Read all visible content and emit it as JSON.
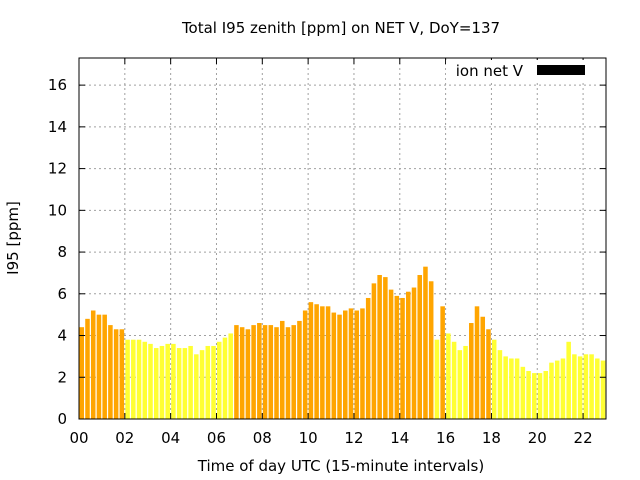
{
  "chart_data": {
    "type": "bar",
    "title": "Total I95 zenith [ppm] on NET V, DoY=137",
    "xlabel": "Time of day UTC (15-minute intervals)",
    "ylabel": "I95 [ppm]",
    "xlim": [
      0,
      23
    ],
    "ylim": [
      0,
      17.3
    ],
    "x_ticks": [
      0,
      2,
      4,
      6,
      8,
      10,
      12,
      14,
      16,
      18,
      20,
      22
    ],
    "x_tick_labels": [
      "00",
      "02",
      "04",
      "06",
      "08",
      "10",
      "12",
      "14",
      "16",
      "18",
      "20",
      "22"
    ],
    "y_ticks": [
      0,
      2,
      4,
      6,
      8,
      10,
      12,
      14,
      16
    ],
    "y_tick_labels": [
      "0",
      "2",
      "4",
      "6",
      "8",
      "10",
      "12",
      "14",
      "16"
    ],
    "grid": true,
    "legend": {
      "position": "top-right",
      "label": "ion net V",
      "color": "#000000"
    },
    "interval_hours": 0.25,
    "colors": {
      "orange": "#ffa500",
      "yellow": "#ffff33",
      "black": "#000000",
      "grid": "#a0a0a0"
    },
    "series": [
      {
        "name": "ion net V",
        "values": [
          4.4,
          4.8,
          5.2,
          5.0,
          5.0,
          4.5,
          4.3,
          4.3,
          3.8,
          3.8,
          3.8,
          3.7,
          3.6,
          3.4,
          3.5,
          3.6,
          3.6,
          3.4,
          3.4,
          3.5,
          3.1,
          3.3,
          3.5,
          3.5,
          3.7,
          3.9,
          4.1,
          4.5,
          4.4,
          4.3,
          4.5,
          4.6,
          4.5,
          4.5,
          4.4,
          4.7,
          4.4,
          4.5,
          4.7,
          5.2,
          5.6,
          5.5,
          5.4,
          5.4,
          5.1,
          5.0,
          5.2,
          5.3,
          5.2,
          5.3,
          5.8,
          6.5,
          6.9,
          6.8,
          6.2,
          5.9,
          5.8,
          6.1,
          6.3,
          6.9,
          7.3,
          6.6,
          3.8,
          5.4,
          4.1,
          3.7,
          3.3,
          3.5,
          4.6,
          5.4,
          4.9,
          4.3,
          3.8,
          3.3,
          3.0,
          2.9,
          2.9,
          2.5,
          2.3,
          2.2,
          2.2,
          2.3,
          2.7,
          2.8,
          2.9,
          3.7,
          3.1,
          3.0,
          3.1,
          3.1,
          2.9,
          2.8
        ],
        "colors": [
          "orange",
          "orange",
          "orange",
          "orange",
          "orange",
          "orange",
          "orange",
          "orange",
          "yellow",
          "yellow",
          "yellow",
          "yellow",
          "yellow",
          "yellow",
          "yellow",
          "yellow",
          "yellow",
          "yellow",
          "yellow",
          "yellow",
          "yellow",
          "yellow",
          "yellow",
          "yellow",
          "yellow",
          "yellow",
          "yellow",
          "orange",
          "orange",
          "orange",
          "orange",
          "orange",
          "orange",
          "orange",
          "orange",
          "orange",
          "orange",
          "orange",
          "orange",
          "orange",
          "orange",
          "orange",
          "orange",
          "orange",
          "orange",
          "orange",
          "orange",
          "orange",
          "orange",
          "orange",
          "orange",
          "orange",
          "orange",
          "orange",
          "orange",
          "orange",
          "orange",
          "orange",
          "orange",
          "orange",
          "orange",
          "orange",
          "yellow",
          "orange",
          "yellow",
          "yellow",
          "yellow",
          "yellow",
          "orange",
          "orange",
          "orange",
          "orange",
          "yellow",
          "yellow",
          "yellow",
          "yellow",
          "yellow",
          "yellow",
          "yellow",
          "yellow",
          "yellow",
          "yellow",
          "yellow",
          "yellow",
          "yellow",
          "yellow",
          "yellow",
          "yellow",
          "yellow",
          "yellow",
          "yellow",
          "yellow"
        ]
      }
    ]
  }
}
